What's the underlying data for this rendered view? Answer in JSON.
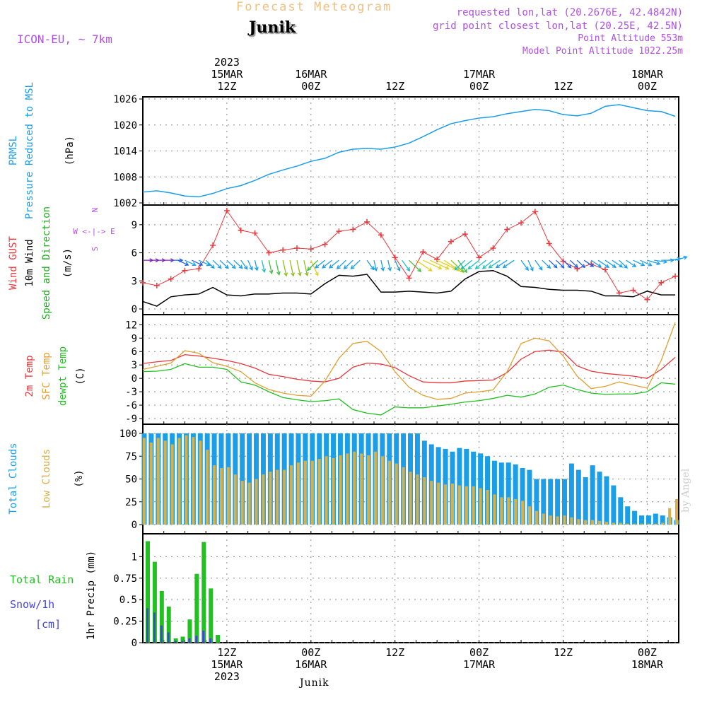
{
  "header": {
    "title": "Forecast Meteogram",
    "location": "Junik",
    "model": "ICON-EU, ~ 7km",
    "requested": "requested lon,lat (20.2676E, 42.4842N)",
    "gridpoint": "grid point closest lon,lat (20.25E, 42.5N)",
    "point_alt": "Point Altitude 553m",
    "model_alt": "Model Point Altitude 1022.25m",
    "credit": "by Angel",
    "footer": "Junik"
  },
  "colors": {
    "pressure": "#1a9ee8",
    "gust": "#e8383c",
    "wind": "#000000",
    "temp2m": "#e8383c",
    "sfctemp": "#e0a030",
    "dewpt": "#20c020",
    "total_clouds": "#1a9ee8",
    "low_clouds": "#d8b048",
    "rain": "#22c022",
    "snow": "#4444dd",
    "label_purple": "#b050e0",
    "title_orange": "#f0c080"
  },
  "time_axis": {
    "top_labels": [
      {
        "h": 12,
        "lines": [
          "2023",
          "15MAR",
          "12Z"
        ]
      },
      {
        "h": 24,
        "lines": [
          "16MAR",
          "00Z"
        ]
      },
      {
        "h": 36,
        "lines": [
          "12Z"
        ]
      },
      {
        "h": 48,
        "lines": [
          "17MAR",
          "00Z"
        ]
      },
      {
        "h": 60,
        "lines": [
          "12Z"
        ]
      },
      {
        "h": 72,
        "lines": [
          "18MAR",
          "00Z"
        ]
      }
    ],
    "bottom_labels": [
      {
        "h": 12,
        "lines": [
          "12Z",
          "15MAR",
          "2023"
        ]
      },
      {
        "h": 24,
        "lines": [
          "00Z",
          "16MAR"
        ]
      },
      {
        "h": 36,
        "lines": [
          "12Z"
        ]
      },
      {
        "h": 48,
        "lines": [
          "00Z",
          "17MAR"
        ]
      },
      {
        "h": 60,
        "lines": [
          "12Z"
        ]
      },
      {
        "h": 72,
        "lines": [
          "00Z",
          "18MAR"
        ]
      }
    ]
  },
  "panel_labels": {
    "pressure": {
      "line1": "PRMSL",
      "line2": "Pressure Reduced to MSL",
      "unit": "(hPa)"
    },
    "wind": {
      "gust": "Wind GUST",
      "wind10": "10m Wind",
      "dir": "Speed and Direction",
      "unit": "(m/s)",
      "compass_we": "W <-|-> E",
      "compass_n": "N",
      "compass_s": "S"
    },
    "temp": {
      "t2m": "2m Temp",
      "sfc": "SFC Temp",
      "dew": "dewpt Temp",
      "unit": "(C)"
    },
    "clouds": {
      "total": "Total Clouds",
      "low": "Low Clouds",
      "unit": "(%)"
    },
    "precip": {
      "rain": "Total  Rain",
      "snow": "Snow/1h",
      "snow_unit": "[cm]",
      "ylabel": "1hr Precip (mm)"
    }
  },
  "chart_data": [
    {
      "type": "line",
      "panel": "pressure",
      "ylabel": "(hPa)",
      "ylim": [
        1002,
        1026
      ],
      "yticks": [
        1002,
        1008,
        1014,
        1020,
        1026
      ],
      "x_hours": [
        0,
        2,
        4,
        6,
        8,
        10,
        12,
        14,
        16,
        18,
        20,
        22,
        24,
        26,
        28,
        30,
        32,
        34,
        36,
        38,
        40,
        42,
        44,
        46,
        48,
        50,
        52,
        54,
        56,
        58,
        60,
        62,
        64,
        66,
        68,
        70,
        72,
        74,
        76
      ],
      "series": [
        {
          "name": "PRMSL",
          "values": [
            1004.5,
            1004.8,
            1004.3,
            1003.6,
            1003.4,
            1004.2,
            1005.3,
            1006.0,
            1007.2,
            1008.6,
            1009.6,
            1010.5,
            1011.6,
            1012.3,
            1013.7,
            1014.4,
            1014.6,
            1014.4,
            1014.9,
            1015.8,
            1017.3,
            1018.9,
            1020.3,
            1021.0,
            1021.6,
            1021.9,
            1022.6,
            1023.1,
            1023.6,
            1023.3,
            1022.4,
            1022.1,
            1022.7,
            1024.3,
            1024.7,
            1024.0,
            1023.3,
            1023.1,
            1022.0
          ]
        }
      ]
    },
    {
      "type": "line",
      "panel": "wind",
      "ylabel": "(m/s)",
      "ylim": [
        0,
        10.5
      ],
      "yticks": [
        0,
        3,
        6,
        9
      ],
      "x_hours": [
        0,
        2,
        4,
        6,
        8,
        10,
        12,
        14,
        16,
        18,
        20,
        22,
        24,
        26,
        28,
        30,
        32,
        34,
        36,
        38,
        40,
        42,
        44,
        46,
        48,
        50,
        52,
        54,
        56,
        58,
        60,
        62,
        64,
        66,
        68,
        70,
        72,
        74,
        76
      ],
      "series": [
        {
          "name": "Wind GUST",
          "values": [
            2.8,
            2.5,
            3.2,
            4.1,
            4.3,
            6.8,
            10.5,
            8.4,
            8.1,
            6.0,
            6.3,
            6.5,
            6.4,
            6.9,
            8.3,
            8.5,
            9.3,
            7.9,
            5.5,
            3.3,
            6.1,
            5.3,
            7.2,
            8.0,
            5.5,
            6.5,
            8.5,
            9.2,
            10.4,
            7.0,
            5.1,
            4.3,
            4.8,
            4.2,
            1.7,
            2.0,
            1.0,
            2.8,
            3.5
          ]
        },
        {
          "name": "10m Wind",
          "values": [
            0.8,
            0.3,
            1.3,
            1.5,
            1.6,
            2.3,
            1.5,
            1.4,
            1.6,
            1.6,
            1.7,
            1.7,
            1.6,
            2.7,
            3.6,
            3.5,
            3.7,
            1.8,
            1.8,
            1.9,
            1.8,
            1.7,
            1.9,
            3.2,
            4.0,
            4.1,
            3.5,
            2.4,
            2.3,
            2.1,
            2.0,
            2.0,
            1.9,
            1.4,
            1.4,
            1.3,
            1.9,
            1.5,
            1.5
          ]
        }
      ],
      "wind_arrows": {
        "x_hours": [
          0,
          1,
          2,
          3,
          4,
          5,
          6,
          7,
          8,
          9,
          10,
          11,
          12,
          13,
          14,
          15,
          16,
          17,
          18,
          19,
          20,
          21,
          22,
          23,
          24,
          25,
          26,
          27,
          28,
          29,
          30,
          31,
          32,
          33,
          34,
          35,
          36,
          37,
          38,
          39,
          40,
          41,
          42,
          43,
          44,
          45,
          46,
          47,
          48,
          49,
          50,
          51,
          52,
          53,
          54,
          55,
          56,
          57,
          58,
          59,
          60,
          61,
          62,
          63,
          64,
          65,
          66,
          67,
          68,
          69,
          70,
          71,
          72,
          73,
          74,
          75,
          76
        ],
        "dir_deg": [
          270,
          270,
          270,
          270,
          270,
          300,
          300,
          300,
          300,
          320,
          320,
          320,
          320,
          320,
          330,
          340,
          350,
          350,
          350,
          350,
          350,
          350,
          350,
          350,
          340,
          40,
          45,
          45,
          45,
          40,
          40,
          40,
          330,
          350,
          350,
          350,
          340,
          330,
          320,
          310,
          300,
          300,
          300,
          310,
          320,
          330,
          40,
          45,
          45,
          45,
          45,
          50,
          50,
          50,
          330,
          340,
          330,
          320,
          320,
          320,
          320,
          320,
          320,
          310,
          310,
          310,
          310,
          310,
          320,
          310,
          300,
          300,
          290,
          280,
          270,
          260,
          250
        ],
        "speed": [
          0.8,
          0.5,
          0.3,
          0.8,
          1.3,
          1.4,
          1.5,
          1.4,
          1.6,
          1.6,
          1.6,
          1.7,
          1.7,
          1.7,
          1.6,
          1.6,
          1.6,
          2.2,
          2.7,
          3.2,
          3.6,
          3.6,
          3.5,
          3.5,
          3.7,
          2.6,
          1.8,
          1.8,
          1.8,
          1.9,
          1.9,
          1.9,
          1.8,
          1.7,
          1.7,
          1.7,
          1.9,
          2.3,
          3.2,
          3.8,
          4.0,
          4.1,
          4.1,
          3.8,
          3.5,
          2.9,
          2.4,
          2.3,
          2.3,
          2.2,
          2.1,
          2.1,
          2.0,
          2.0,
          2.0,
          1.9,
          1.9,
          1.6,
          1.4,
          1.4,
          1.4,
          1.3,
          1.3,
          1.4,
          1.6,
          1.9,
          1.9,
          1.7,
          1.5,
          1.5,
          1.6,
          1.7,
          1.8,
          1.6,
          1.5,
          1.5,
          1.5
        ]
      }
    },
    {
      "type": "line",
      "panel": "temperature",
      "ylabel": "(C)",
      "ylim": [
        -9,
        13
      ],
      "yticks": [
        -9,
        -6,
        -3,
        0,
        3,
        6,
        9,
        12
      ],
      "x_hours": [
        0,
        2,
        4,
        6,
        8,
        10,
        12,
        14,
        16,
        18,
        20,
        22,
        24,
        26,
        28,
        30,
        32,
        34,
        36,
        38,
        40,
        42,
        44,
        46,
        48,
        50,
        52,
        54,
        56,
        58,
        60,
        62,
        64,
        66,
        68,
        70,
        72,
        74,
        76
      ],
      "series": [
        {
          "name": "2m Temp",
          "values": [
            3.3,
            3.7,
            4.0,
            5.3,
            5.0,
            4.5,
            4.0,
            3.3,
            2.3,
            0.9,
            0.4,
            -0.2,
            -0.6,
            -0.8,
            0.0,
            2.5,
            3.4,
            3.2,
            2.4,
            0.6,
            -0.8,
            -1.0,
            -1.0,
            -0.6,
            -0.5,
            -0.4,
            1.3,
            4.3,
            6.0,
            6.3,
            5.9,
            2.8,
            1.6,
            1.1,
            0.8,
            0.5,
            0.0,
            2.0,
            4.7
          ]
        },
        {
          "name": "SFC Temp",
          "values": [
            2.0,
            2.7,
            3.4,
            6.2,
            5.6,
            3.5,
            2.7,
            1.5,
            -1.0,
            -2.5,
            -3.3,
            -3.8,
            -4.0,
            -0.6,
            4.5,
            7.8,
            8.3,
            6.0,
            1.5,
            -2.0,
            -3.8,
            -4.7,
            -4.5,
            -3.3,
            -3.0,
            -2.6,
            1.5,
            7.8,
            9.0,
            8.4,
            5.0,
            0.5,
            -2.3,
            -1.8,
            -0.8,
            -1.5,
            -2.2,
            4.0,
            12.5
          ]
        },
        {
          "name": "dewpt Temp",
          "values": [
            1.5,
            1.6,
            2.0,
            3.3,
            2.5,
            2.5,
            2.0,
            -0.8,
            -1.5,
            -3.0,
            -4.3,
            -4.8,
            -5.2,
            -5.0,
            -4.6,
            -7.0,
            -7.8,
            -8.2,
            -6.4,
            -6.6,
            -6.6,
            -6.2,
            -5.8,
            -5.3,
            -5.0,
            -4.5,
            -3.8,
            -4.2,
            -3.5,
            -2.0,
            -1.5,
            -2.5,
            -3.3,
            -3.6,
            -3.5,
            -3.5,
            -3.0,
            -1.0,
            -1.3
          ]
        }
      ]
    },
    {
      "type": "bar",
      "panel": "clouds",
      "ylabel": "(%)",
      "ylim": [
        0,
        100
      ],
      "yticks": [
        0,
        25,
        50,
        75,
        100
      ],
      "x_hours": [
        0,
        1,
        2,
        3,
        4,
        5,
        6,
        7,
        8,
        9,
        10,
        11,
        12,
        13,
        14,
        15,
        16,
        17,
        18,
        19,
        20,
        21,
        22,
        23,
        24,
        25,
        26,
        27,
        28,
        29,
        30,
        31,
        32,
        33,
        34,
        35,
        36,
        37,
        38,
        39,
        40,
        41,
        42,
        43,
        44,
        45,
        46,
        47,
        48,
        49,
        50,
        51,
        52,
        53,
        54,
        55,
        56,
        57,
        58,
        59,
        60,
        61,
        62,
        63,
        64,
        65,
        66,
        67,
        68,
        69,
        70,
        71,
        72,
        73,
        74,
        75,
        76
      ],
      "series": [
        {
          "name": "Total Clouds",
          "values": [
            100,
            100,
            100,
            100,
            100,
            100,
            100,
            100,
            100,
            100,
            100,
            100,
            100,
            100,
            100,
            100,
            100,
            100,
            100,
            100,
            100,
            100,
            100,
            100,
            100,
            100,
            100,
            100,
            100,
            100,
            100,
            100,
            100,
            100,
            100,
            100,
            100,
            100,
            100,
            100,
            92,
            88,
            85,
            83,
            80,
            84,
            83,
            80,
            78,
            75,
            70,
            68,
            68,
            66,
            62,
            60,
            50,
            50,
            50,
            50,
            50,
            67,
            60,
            52,
            65,
            58,
            53,
            43,
            30,
            20,
            15,
            10,
            10,
            12,
            10,
            8,
            5
          ]
        },
        {
          "name": "Low Clouds",
          "values": [
            95,
            90,
            95,
            92,
            88,
            95,
            98,
            96,
            92,
            82,
            65,
            62,
            63,
            55,
            48,
            46,
            50,
            55,
            58,
            60,
            60,
            65,
            68,
            70,
            70,
            72,
            75,
            73,
            76,
            78,
            80,
            78,
            76,
            80,
            75,
            70,
            67,
            63,
            58,
            55,
            52,
            48,
            46,
            44,
            45,
            43,
            42,
            42,
            40,
            38,
            33,
            30,
            30,
            28,
            26,
            20,
            15,
            12,
            10,
            9,
            10,
            8,
            6,
            5,
            5,
            4,
            3,
            2,
            2,
            1,
            1,
            1,
            1,
            1,
            2,
            18,
            28
          ]
        }
      ]
    },
    {
      "type": "bar",
      "panel": "precipitation",
      "ylabel": "1hr Precip (mm)",
      "ylim": [
        0,
        1.2
      ],
      "yticks": [
        0,
        0.25,
        0.5,
        0.75,
        1
      ],
      "x_hours": [
        0,
        1,
        2,
        3,
        4,
        5,
        6,
        7,
        8,
        9,
        10,
        11,
        12,
        13,
        14,
        15
      ],
      "series": [
        {
          "name": "Total Rain",
          "values": [
            1.18,
            0.94,
            0.6,
            0.42,
            0.05,
            0.07,
            0.27,
            0.8,
            1.17,
            0.63,
            0.09,
            0,
            0,
            0,
            0,
            0
          ]
        },
        {
          "name": "Snow/1h",
          "values": [
            0.4,
            0.35,
            0.2,
            0.12,
            0.02,
            0.02,
            0.05,
            0.08,
            0.14,
            0.05,
            0,
            0,
            0,
            0,
            0,
            0
          ]
        }
      ]
    }
  ]
}
